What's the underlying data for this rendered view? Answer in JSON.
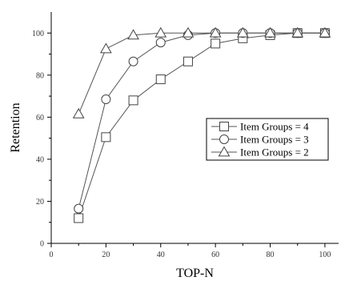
{
  "chart_data": {
    "type": "line",
    "xlabel": "TOP-N",
    "ylabel": "Retention",
    "xlim": [
      0,
      105
    ],
    "ylim": [
      0,
      110
    ],
    "xticks": [
      0,
      20,
      40,
      60,
      80,
      100
    ],
    "yticks": [
      0,
      20,
      40,
      60,
      80,
      100
    ],
    "grid": false,
    "legend_position": "center-right",
    "x": [
      10,
      20,
      30,
      40,
      50,
      60,
      70,
      80,
      90,
      100
    ],
    "series": [
      {
        "name": "Item Groups = 4",
        "marker": "square",
        "values": [
          12,
          50.5,
          68,
          78,
          86.5,
          95,
          97.5,
          99,
          100,
          100
        ]
      },
      {
        "name": "Item Groups = 3",
        "marker": "circle",
        "values": [
          16.5,
          68.5,
          86.5,
          95.5,
          99,
          100,
          100,
          100,
          100,
          100
        ]
      },
      {
        "name": "Item Groups = 2",
        "marker": "triangle",
        "values": [
          61.5,
          92.5,
          99,
          100,
          100,
          100,
          100,
          100,
          100,
          100
        ]
      }
    ]
  }
}
